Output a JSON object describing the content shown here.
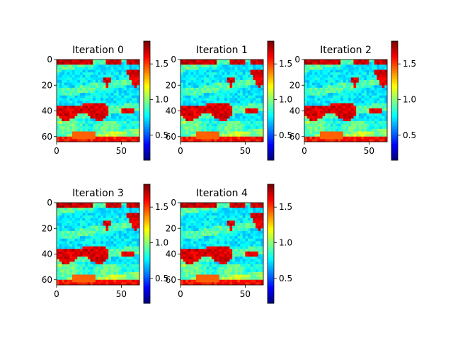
{
  "figure": {
    "colormap": "jet",
    "background": "#ffffff"
  },
  "chart_data": [
    {
      "type": "heatmap",
      "title": "Iteration 0",
      "x_ticks": [
        "0",
        "50"
      ],
      "y_ticks": [
        "0",
        "20",
        "40",
        "60"
      ],
      "xlim": [
        0,
        64
      ],
      "ylim": [
        64,
        0
      ],
      "colorbar_ticks": [
        "0.5",
        "1.0",
        "1.5"
      ],
      "colorbar_range": [
        0.15,
        1.82
      ],
      "colormap": "jet"
    },
    {
      "type": "heatmap",
      "title": "Iteration 1",
      "x_ticks": [
        "0",
        "50"
      ],
      "y_ticks": [
        "0",
        "20",
        "40",
        "60"
      ],
      "xlim": [
        0,
        64
      ],
      "ylim": [
        64,
        0
      ],
      "colorbar_ticks": [
        "0.5",
        "1.0",
        "1.5"
      ],
      "colorbar_range": [
        0.15,
        1.82
      ],
      "colormap": "jet"
    },
    {
      "type": "heatmap",
      "title": "Iteration 2",
      "x_ticks": [
        "0",
        "50"
      ],
      "y_ticks": [
        "0",
        "20",
        "40",
        "60"
      ],
      "xlim": [
        0,
        64
      ],
      "ylim": [
        64,
        0
      ],
      "colorbar_ticks": [
        "0.5",
        "1.0",
        "1.5"
      ],
      "colorbar_range": [
        0.15,
        1.82
      ],
      "colormap": "jet"
    },
    {
      "type": "heatmap",
      "title": "Iteration 3",
      "x_ticks": [
        "0",
        "50"
      ],
      "y_ticks": [
        "0",
        "20",
        "40",
        "60"
      ],
      "xlim": [
        0,
        64
      ],
      "ylim": [
        64,
        0
      ],
      "colorbar_ticks": [
        "0.5",
        "1.0",
        "1.5"
      ],
      "colorbar_range": [
        0.15,
        1.82
      ],
      "colormap": "jet"
    },
    {
      "type": "heatmap",
      "title": "Iteration 4",
      "x_ticks": [
        "0",
        "50"
      ],
      "y_ticks": [
        "0",
        "20",
        "40",
        "60"
      ],
      "xlim": [
        0,
        64
      ],
      "ylim": [
        64,
        0
      ],
      "colorbar_ticks": [
        "0.5",
        "1.0",
        "1.5"
      ],
      "colorbar_range": [
        0.15,
        1.82
      ],
      "colormap": "jet"
    }
  ]
}
